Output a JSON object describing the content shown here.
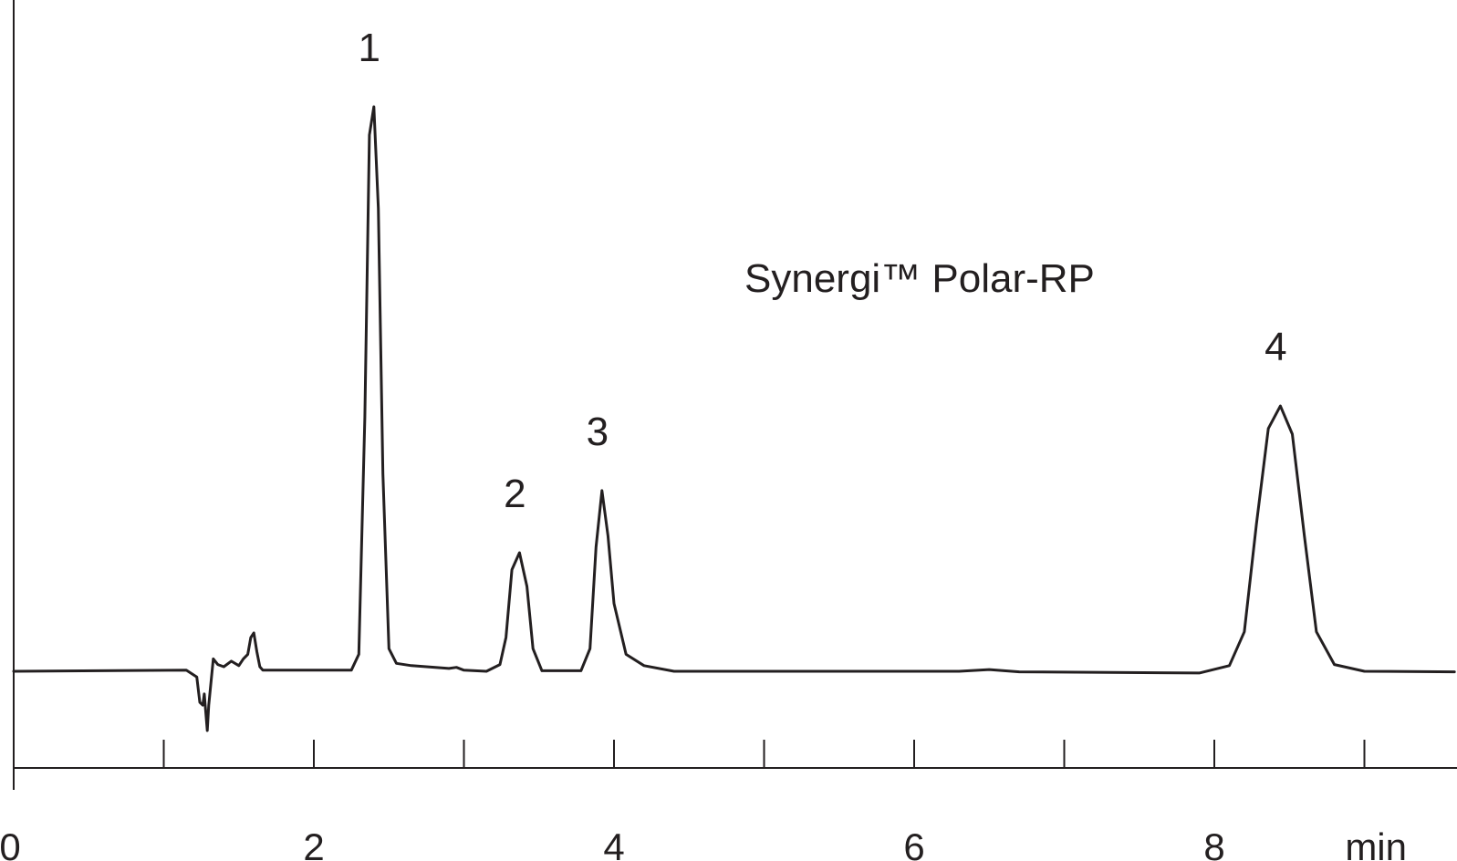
{
  "chart_data": {
    "type": "line",
    "annotation": "Synergi™ Polar-RP",
    "xlabel": "min",
    "xlim": [
      0,
      9.6
    ],
    "ylim": [
      -0.22,
      1.55
    ],
    "x_ticks": [
      0,
      1,
      2,
      3,
      4,
      5,
      6,
      7,
      8,
      9
    ],
    "x_tick_labels": [
      "0",
      "2",
      "4",
      "6",
      "8"
    ],
    "x_tick_label_values": [
      0,
      2,
      4,
      6,
      8
    ],
    "grid": false,
    "line_color": "#231f20",
    "peaks": [
      {
        "label": "1",
        "time": 2.4,
        "height": 1.0
      },
      {
        "label": "2",
        "time": 3.37,
        "height": 0.21
      },
      {
        "label": "3",
        "time": 3.92,
        "height": 0.32
      },
      {
        "label": "4",
        "time": 8.44,
        "height": 0.47
      }
    ],
    "series": [
      {
        "x": [
          0.0,
          1.15,
          1.22,
          1.24,
          1.26,
          1.27,
          1.29,
          1.3,
          1.33,
          1.36,
          1.4,
          1.45,
          1.5,
          1.53,
          1.56,
          1.58,
          1.6,
          1.62,
          1.64,
          1.66,
          1.8,
          2.25,
          2.3,
          2.34,
          2.37,
          2.4,
          2.43,
          2.46,
          2.5,
          2.55,
          2.65,
          2.9,
          2.95,
          3.0,
          3.15,
          3.24,
          3.28,
          3.32,
          3.37,
          3.42,
          3.46,
          3.52,
          3.78,
          3.84,
          3.88,
          3.92,
          3.96,
          4.0,
          4.08,
          4.2,
          4.4,
          6.3,
          6.5,
          6.7,
          7.9,
          8.1,
          8.2,
          8.28,
          8.36,
          8.44,
          8.52,
          8.6,
          8.68,
          8.8,
          9.0,
          9.6
        ],
        "y": [
          0.0,
          0.002,
          -0.01,
          -0.055,
          -0.06,
          -0.04,
          -0.105,
          -0.06,
          0.022,
          0.012,
          0.008,
          0.018,
          0.01,
          0.022,
          0.03,
          0.06,
          0.068,
          0.035,
          0.008,
          0.002,
          0.002,
          0.002,
          0.03,
          0.45,
          0.95,
          1.0,
          0.82,
          0.35,
          0.04,
          0.014,
          0.01,
          0.005,
          0.007,
          0.002,
          0.0,
          0.012,
          0.06,
          0.18,
          0.21,
          0.15,
          0.04,
          0.001,
          0.001,
          0.04,
          0.22,
          0.32,
          0.24,
          0.12,
          0.03,
          0.01,
          0.0,
          0.0,
          0.003,
          -0.001,
          -0.003,
          0.01,
          0.07,
          0.26,
          0.43,
          0.47,
          0.42,
          0.24,
          0.07,
          0.012,
          0.0,
          -0.001
        ]
      }
    ]
  }
}
